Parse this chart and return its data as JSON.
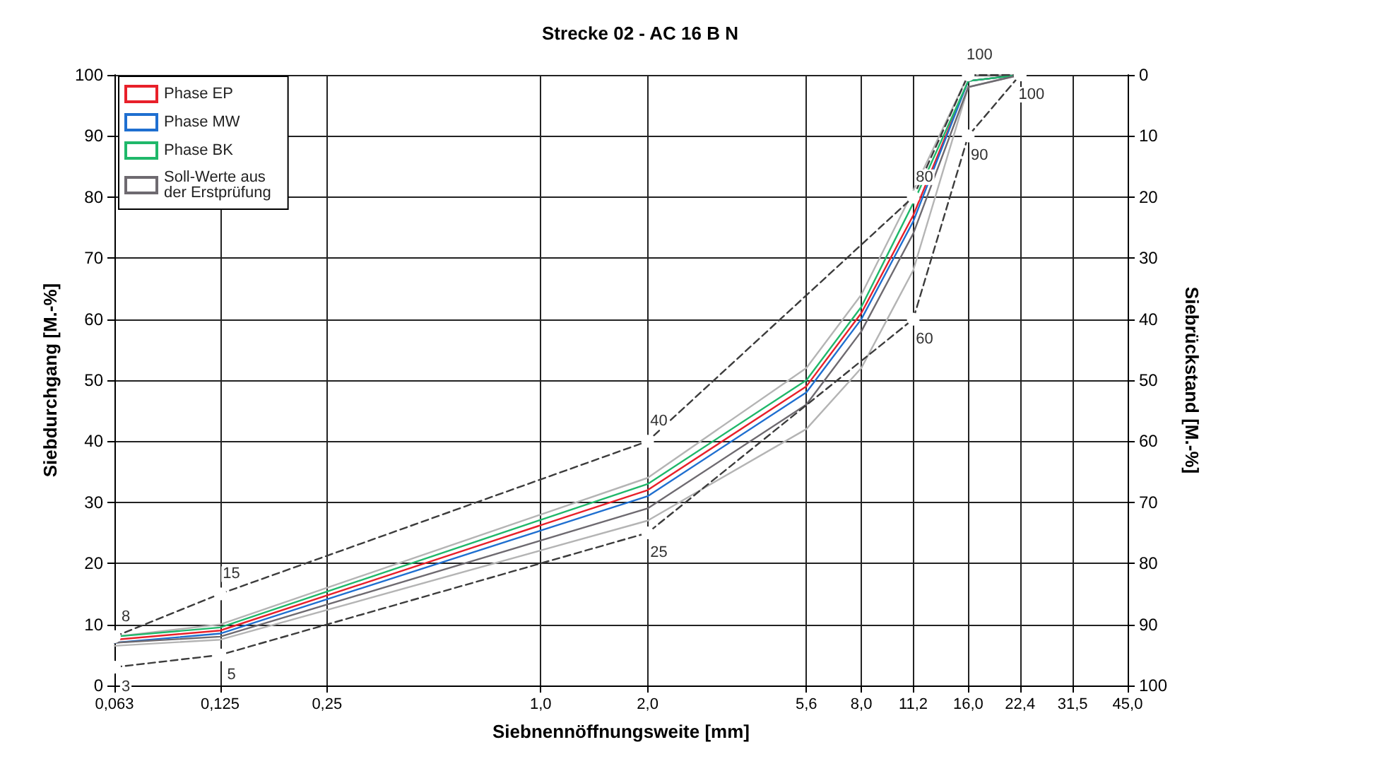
{
  "chart_data": {
    "type": "line",
    "title": "Strecke 02 - AC 16 B N",
    "xlabel": "Siebnennöffnungsweite [mm]",
    "ylabel": "Siebdurchgang [M.-%]",
    "y2label": "Siebrückstand [M.-%]",
    "log": "x",
    "xlim": [
      0.063,
      45
    ],
    "xticks": [
      {
        "value": 0.063,
        "label": "0,063"
      },
      {
        "value": 0.125,
        "label": "0,125"
      },
      {
        "value": 0.25,
        "label": "0,25"
      },
      {
        "value": 1.0,
        "label": "1,0"
      },
      {
        "value": 2.0,
        "label": "2,0"
      },
      {
        "value": 5.6,
        "label": "5,6"
      },
      {
        "value": 8.0,
        "label": "8,0"
      },
      {
        "value": 11.2,
        "label": "11,2"
      },
      {
        "value": 16.0,
        "label": "16,0"
      },
      {
        "value": 22.4,
        "label": "22,4"
      },
      {
        "value": 31.5,
        "label": "31,5"
      },
      {
        "value": 45.0,
        "label": "45,0"
      }
    ],
    "ylim": [
      0,
      100
    ],
    "yticks": [
      0,
      10,
      20,
      30,
      40,
      50,
      60,
      70,
      80,
      90,
      100
    ],
    "y2lim": [
      100,
      0
    ],
    "y2ticks": [
      0,
      10,
      20,
      30,
      40,
      50,
      60,
      70,
      80,
      90,
      100
    ],
    "grid": true,
    "legend": "top left",
    "marker": "none",
    "line_style": "solid",
    "series": [
      {
        "color": "#b4b4b4",
        "x": [
          0.063,
          0.125,
          2.0,
          5.6,
          8.0,
          11.2,
          16.0,
          22.4
        ],
        "values": [
          8,
          10,
          34,
          52,
          64,
          81,
          100,
          100
        ]
      },
      {
        "color": "#b4b4b4",
        "x": [
          0.063,
          0.125,
          2.0,
          5.6,
          8.0,
          11.2,
          16.0,
          22.4
        ],
        "values": [
          6.5,
          7.5,
          27,
          42,
          52,
          68,
          98,
          100
        ]
      },
      {
        "name": "Phase EP",
        "color": "#e8202a",
        "x": [
          0.063,
          0.125,
          2.0,
          5.6,
          8.0,
          11.2,
          16.0,
          22.4
        ],
        "values": [
          7.5,
          9,
          32,
          49,
          61,
          77,
          99,
          100
        ]
      },
      {
        "name": "Phase MW",
        "color": "#1f6fd0",
        "x": [
          0.063,
          0.125,
          2.0,
          5.6,
          8.0,
          11.2,
          16.0,
          22.4
        ],
        "values": [
          7,
          8.5,
          31,
          48,
          60,
          76,
          99,
          100
        ]
      },
      {
        "name": "Phase BK",
        "color": "#1fb86a",
        "x": [
          0.063,
          0.125,
          2.0,
          5.6,
          8.0,
          11.2,
          16.0,
          22.4
        ],
        "values": [
          8,
          9.5,
          33,
          50,
          62,
          79,
          99,
          100
        ]
      },
      {
        "name": "Soll-Werte aus\nder Erstprüfung",
        "color": "#6e6a70",
        "x": [
          0.063,
          0.125,
          2.0,
          5.6,
          8.0,
          11.2,
          16.0,
          22.4
        ],
        "values": [
          7,
          8,
          29,
          46,
          58,
          74,
          98,
          100
        ]
      },
      {
        "color": "#3c3c3c",
        "line_style": "dashed",
        "marker": "circle",
        "x": [
          0.063,
          0.125,
          2.0,
          11.2,
          16.0,
          22.4
        ],
        "values": [
          8,
          15,
          40,
          80,
          100,
          100
        ],
        "value_labels": [
          "8",
          "15",
          "40",
          "80",
          "100",
          null
        ]
      },
      {
        "color": "#3c3c3c",
        "line_style": "dashed",
        "marker": "circle",
        "x": [
          0.063,
          0.125,
          2.0,
          11.2,
          16.0,
          22.4
        ],
        "values": [
          3,
          5,
          25,
          60,
          90,
          100
        ],
        "value_labels": [
          "3",
          "5",
          "25",
          "60",
          "90",
          "100"
        ]
      }
    ]
  }
}
